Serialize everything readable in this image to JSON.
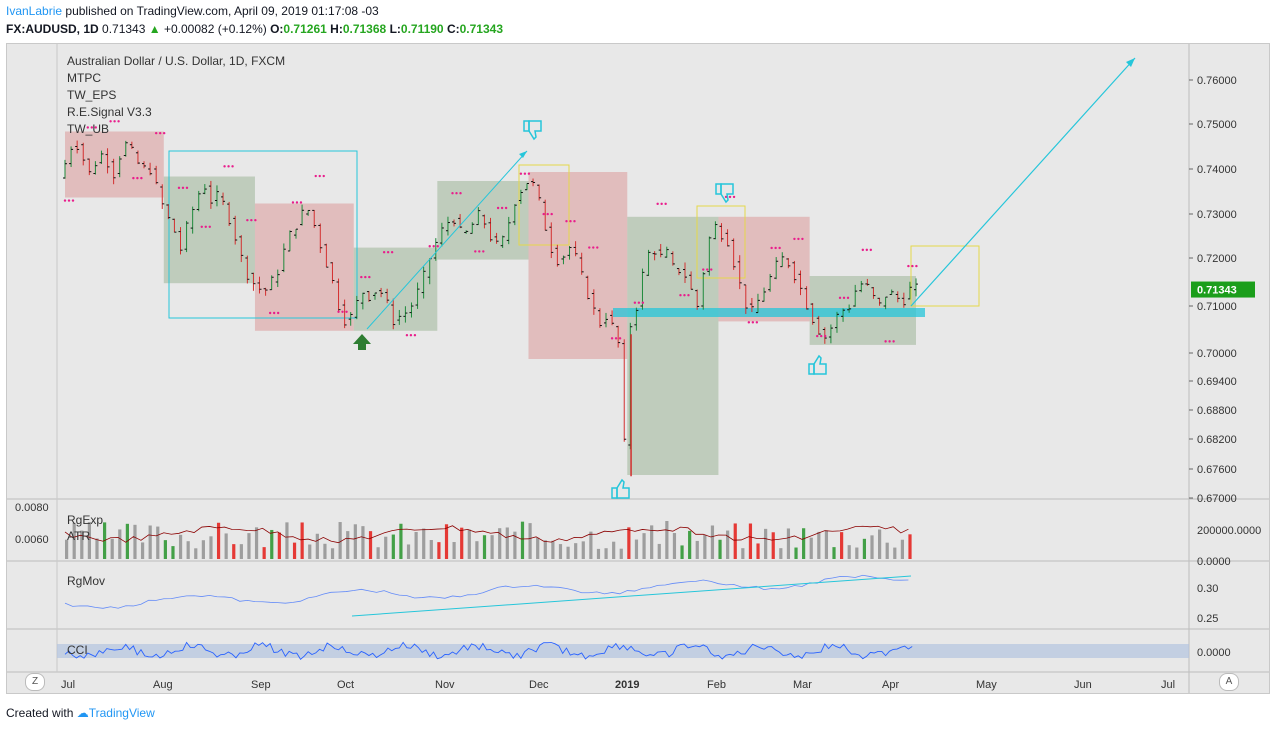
{
  "header": {
    "user": "IvanLabrie",
    "published_text": "published on TradingView.com, April 09, 2019 01:17:08 -03",
    "symbol_line": "FX:AUDUSD, 1D",
    "last": "0.71343",
    "change_arrow": "▲",
    "change": "+0.00082 (+0.12%)",
    "o_label": "O:",
    "o": "0.71261",
    "h_label": "H:",
    "h": "0.71368",
    "l_label": "L:",
    "l": "0.71190",
    "c_label": "C:",
    "c": "0.71343"
  },
  "legend": {
    "title": "Australian Dollar / U.S. Dollar, 1D, FXCM",
    "indicators": [
      "MTPC",
      "TW_EPS",
      "R.E.Signal V3.3",
      "TW_UB"
    ]
  },
  "panes": {
    "volume_labels": [
      "RgExp",
      "ATR"
    ],
    "rgmov_label": "RgMov",
    "cci_label": "CCI"
  },
  "footer": {
    "created_with": "Created with",
    "brand": "TradingView"
  },
  "corners": {
    "left": "Z",
    "right": "A"
  },
  "colors": {
    "up": "#26a69a",
    "down": "#ef5350",
    "up_box": "#8faa88",
    "down_box": "#d98a8a",
    "pink": "#e91e8c",
    "cyan": "#26c6da",
    "yellow": "#ffeb3b",
    "price_tag": "#1b9e1b",
    "vol_gray": "#9e9e9e",
    "vol_green": "#43a047",
    "vol_red": "#e53935",
    "line_blue": "#2962ff"
  },
  "chart_data": {
    "type": "candlestick",
    "title": "Australian Dollar / U.S. Dollar, 1D, FXCM",
    "x_ticks": [
      "Jul",
      "Aug",
      "Sep",
      "Oct",
      "Nov",
      "Dec",
      "2019",
      "Feb",
      "Mar",
      "Apr",
      "May",
      "Jun",
      "Jul"
    ],
    "y_ticks": [
      "0.76000",
      "0.75000",
      "0.74000",
      "0.73000",
      "0.72000",
      "0.71000",
      "0.70000",
      "0.69400",
      "0.68800",
      "0.68200",
      "0.67600",
      "0.67000"
    ],
    "last_price_tag": "0.71343",
    "volume_axis_left": [
      "0.0080",
      "0.0060"
    ],
    "volume_axis_right": [
      "200000.0000",
      "0.0000"
    ],
    "rgmov_axis": [
      "0.30",
      "0.25"
    ],
    "cci_axis": [
      "0.0000"
    ],
    "price_path": [
      [
        0,
        0.738
      ],
      [
        2,
        0.742
      ],
      [
        4,
        0.747
      ],
      [
        6,
        0.743
      ],
      [
        8,
        0.739
      ],
      [
        10,
        0.742
      ],
      [
        12,
        0.744
      ],
      [
        14,
        0.738
      ],
      [
        16,
        0.743
      ],
      [
        18,
        0.746
      ],
      [
        20,
        0.742
      ],
      [
        22,
        0.74
      ],
      [
        24,
        0.74
      ],
      [
        26,
        0.735
      ],
      [
        28,
        0.73
      ],
      [
        30,
        0.727
      ],
      [
        32,
        0.722
      ],
      [
        34,
        0.728
      ],
      [
        36,
        0.733
      ],
      [
        38,
        0.737
      ],
      [
        40,
        0.733
      ],
      [
        42,
        0.734
      ],
      [
        44,
        0.731
      ],
      [
        46,
        0.726
      ],
      [
        48,
        0.72
      ],
      [
        50,
        0.716
      ],
      [
        52,
        0.714
      ],
      [
        54,
        0.713
      ],
      [
        56,
        0.715
      ],
      [
        58,
        0.718
      ],
      [
        60,
        0.724
      ],
      [
        62,
        0.727
      ],
      [
        64,
        0.73
      ],
      [
        66,
        0.731
      ],
      [
        68,
        0.725
      ],
      [
        70,
        0.72
      ],
      [
        72,
        0.715
      ],
      [
        74,
        0.709
      ],
      [
        76,
        0.706
      ],
      [
        78,
        0.71
      ],
      [
        80,
        0.713
      ],
      [
        82,
        0.712
      ],
      [
        84,
        0.714
      ],
      [
        86,
        0.711
      ],
      [
        88,
        0.707
      ],
      [
        90,
        0.708
      ],
      [
        92,
        0.709
      ],
      [
        94,
        0.712
      ],
      [
        96,
        0.716
      ],
      [
        98,
        0.721
      ],
      [
        100,
        0.725
      ],
      [
        102,
        0.728
      ],
      [
        104,
        0.729
      ],
      [
        106,
        0.725
      ],
      [
        108,
        0.726
      ],
      [
        110,
        0.73
      ],
      [
        112,
        0.728
      ],
      [
        114,
        0.724
      ],
      [
        116,
        0.722
      ],
      [
        118,
        0.727
      ],
      [
        120,
        0.733
      ],
      [
        122,
        0.736
      ],
      [
        124,
        0.738
      ],
      [
        126,
        0.734
      ],
      [
        128,
        0.727
      ],
      [
        130,
        0.721
      ],
      [
        132,
        0.719
      ],
      [
        134,
        0.723
      ],
      [
        136,
        0.72
      ],
      [
        138,
        0.715
      ],
      [
        140,
        0.711
      ],
      [
        142,
        0.706
      ],
      [
        144,
        0.708
      ],
      [
        146,
        0.705
      ],
      [
        148,
        0.7
      ],
      [
        149,
        0.676
      ],
      [
        150,
        0.705
      ],
      [
        152,
        0.71
      ],
      [
        154,
        0.718
      ],
      [
        156,
        0.723
      ],
      [
        158,
        0.72
      ],
      [
        160,
        0.721
      ],
      [
        162,
        0.717
      ],
      [
        164,
        0.718
      ],
      [
        166,
        0.714
      ],
      [
        168,
        0.71
      ],
      [
        170,
        0.719
      ],
      [
        172,
        0.728
      ],
      [
        174,
        0.726
      ],
      [
        176,
        0.724
      ],
      [
        178,
        0.718
      ],
      [
        180,
        0.712
      ],
      [
        182,
        0.708
      ],
      [
        184,
        0.711
      ],
      [
        186,
        0.714
      ],
      [
        188,
        0.717
      ],
      [
        190,
        0.72
      ],
      [
        192,
        0.719
      ],
      [
        194,
        0.716
      ],
      [
        196,
        0.712
      ],
      [
        198,
        0.708
      ],
      [
        200,
        0.705
      ],
      [
        202,
        0.703
      ],
      [
        204,
        0.707
      ],
      [
        206,
        0.709
      ],
      [
        208,
        0.71
      ],
      [
        210,
        0.714
      ],
      [
        212,
        0.715
      ],
      [
        214,
        0.712
      ],
      [
        216,
        0.71
      ],
      [
        218,
        0.713
      ],
      [
        220,
        0.712
      ],
      [
        222,
        0.711
      ],
      [
        224,
        0.7134
      ]
    ]
  }
}
